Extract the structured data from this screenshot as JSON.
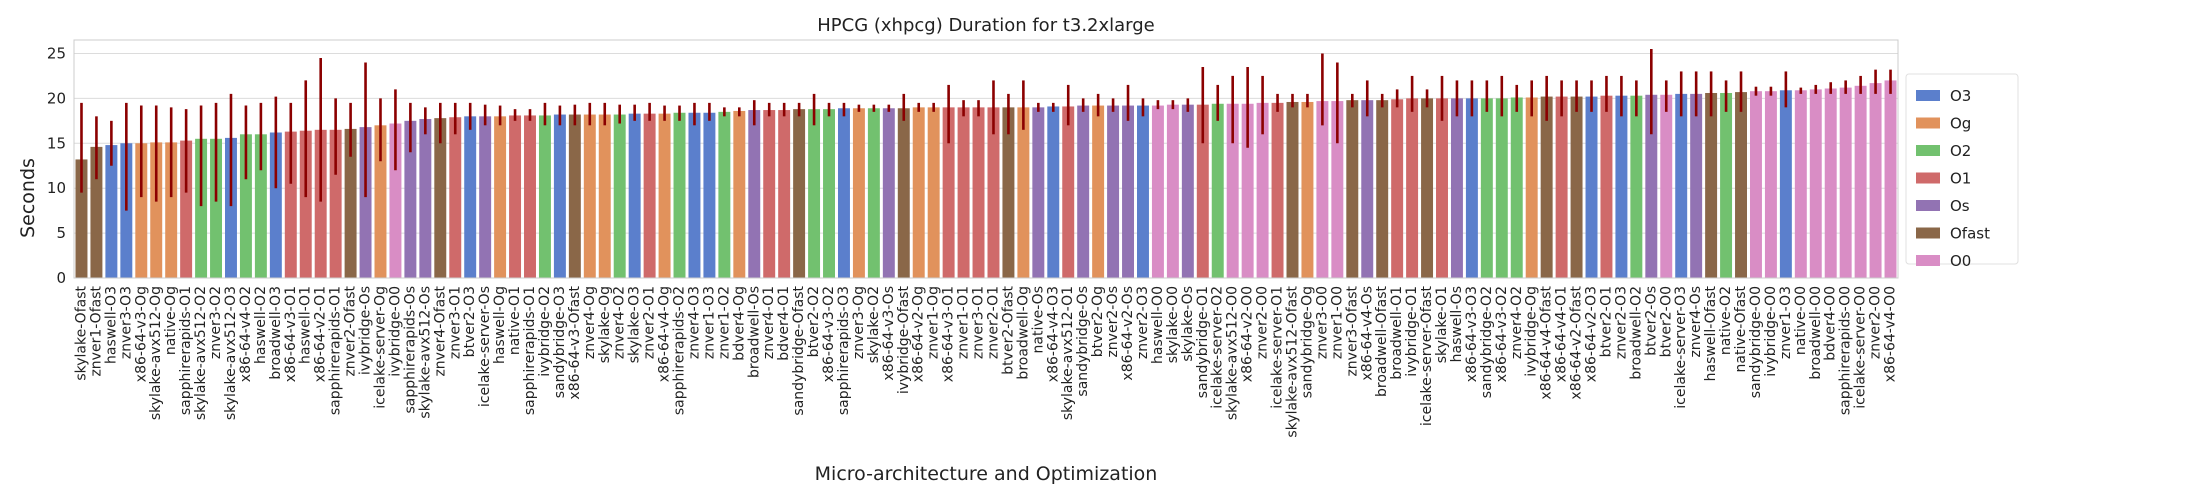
{
  "chart_data": {
    "type": "bar",
    "title": "HPCG (xhpcg) Duration for t3.2xlarge",
    "xlabel": "Micro-architecture and Optimization",
    "ylabel": "Seconds",
    "ylim": [
      0,
      26.5
    ],
    "yticks": [
      0,
      5,
      10,
      15,
      20,
      25
    ],
    "grid": true,
    "legend_position": "right",
    "legend": [
      {
        "name": "O3",
        "color": "#5b7fcc"
      },
      {
        "name": "Og",
        "color": "#e1925c"
      },
      {
        "name": "O2",
        "color": "#72c16f"
      },
      {
        "name": "O1",
        "color": "#cf6a6a"
      },
      {
        "name": "Os",
        "color": "#9273b3"
      },
      {
        "name": "Ofast",
        "color": "#8a6748"
      },
      {
        "name": "O0",
        "color": "#d98dc5"
      }
    ],
    "error_bar_color": "#8b0000",
    "bars": [
      {
        "label": "skylake-Ofast",
        "group": "Ofast",
        "value": 13.2,
        "err_low": 9.5,
        "err_high": 19.5
      },
      {
        "label": "znver1-Ofast",
        "group": "Ofast",
        "value": 14.6,
        "err_low": 11.0,
        "err_high": 18.0
      },
      {
        "label": "haswell-O3",
        "group": "O3",
        "value": 14.8,
        "err_low": 12.5,
        "err_high": 17.5
      },
      {
        "label": "znver3-O3",
        "group": "O3",
        "value": 15.0,
        "err_low": 7.5,
        "err_high": 19.5
      },
      {
        "label": "x86-64-v3-Og",
        "group": "Og",
        "value": 15.0,
        "err_low": 9.0,
        "err_high": 19.2
      },
      {
        "label": "skylake-avx512-Og",
        "group": "Og",
        "value": 15.1,
        "err_low": 8.5,
        "err_high": 19.2
      },
      {
        "label": "native-Og",
        "group": "Og",
        "value": 15.1,
        "err_low": 9.0,
        "err_high": 19.0
      },
      {
        "label": "sapphirerapids-O1",
        "group": "O1",
        "value": 15.3,
        "err_low": 9.5,
        "err_high": 18.8
      },
      {
        "label": "skylake-avx512-O2",
        "group": "O2",
        "value": 15.5,
        "err_low": 8.0,
        "err_high": 19.2
      },
      {
        "label": "znver3-O2",
        "group": "O2",
        "value": 15.5,
        "err_low": 8.5,
        "err_high": 19.5
      },
      {
        "label": "skylake-avx512-O3",
        "group": "O3",
        "value": 15.6,
        "err_low": 8.0,
        "err_high": 20.5
      },
      {
        "label": "x86-64-v4-O2",
        "group": "O2",
        "value": 16.0,
        "err_low": 11.0,
        "err_high": 19.2
      },
      {
        "label": "haswell-O2",
        "group": "O2",
        "value": 16.0,
        "err_low": 12.0,
        "err_high": 19.5
      },
      {
        "label": "broadwell-O3",
        "group": "O3",
        "value": 16.2,
        "err_low": 10.0,
        "err_high": 20.2
      },
      {
        "label": "x86-64-v3-O1",
        "group": "O1",
        "value": 16.3,
        "err_low": 10.5,
        "err_high": 19.5
      },
      {
        "label": "haswell-O1",
        "group": "O1",
        "value": 16.4,
        "err_low": 9.0,
        "err_high": 22.0
      },
      {
        "label": "x86-64-v2-O1",
        "group": "O1",
        "value": 16.5,
        "err_low": 8.5,
        "err_high": 24.5
      },
      {
        "label": "sapphirerapids-O1",
        "group": "O1",
        "value": 16.5,
        "err_low": 11.5,
        "err_high": 20.0
      },
      {
        "label": "znver2-Ofast",
        "group": "Ofast",
        "value": 16.6,
        "err_low": 13.5,
        "err_high": 19.5
      },
      {
        "label": "ivybridge-Os",
        "group": "Os",
        "value": 16.8,
        "err_low": 9.0,
        "err_high": 24.0
      },
      {
        "label": "icelake-server-Og",
        "group": "Og",
        "value": 17.0,
        "err_low": 13.0,
        "err_high": 20.0
      },
      {
        "label": "ivybridge-O0",
        "group": "O0",
        "value": 17.2,
        "err_low": 12.0,
        "err_high": 21.0
      },
      {
        "label": "sapphirerapids-Os",
        "group": "Os",
        "value": 17.5,
        "err_low": 14.0,
        "err_high": 19.5
      },
      {
        "label": "skylake-avx512-Os",
        "group": "Os",
        "value": 17.7,
        "err_low": 16.0,
        "err_high": 19.0
      },
      {
        "label": "znver4-Ofast",
        "group": "Ofast",
        "value": 17.8,
        "err_low": 15.0,
        "err_high": 19.5
      },
      {
        "label": "znver3-O1",
        "group": "O1",
        "value": 17.9,
        "err_low": 16.0,
        "err_high": 19.5
      },
      {
        "label": "btver2-O3",
        "group": "O3",
        "value": 18.0,
        "err_low": 16.5,
        "err_high": 19.5
      },
      {
        "label": "icelake-server-Os",
        "group": "Os",
        "value": 18.0,
        "err_low": 17.0,
        "err_high": 19.3
      },
      {
        "label": "haswell-Og",
        "group": "Og",
        "value": 18.0,
        "err_low": 17.0,
        "err_high": 19.2
      },
      {
        "label": "native-O1",
        "group": "O1",
        "value": 18.1,
        "err_low": 17.5,
        "err_high": 18.8
      },
      {
        "label": "sapphirerapids-O1",
        "group": "O1",
        "value": 18.1,
        "err_low": 17.5,
        "err_high": 18.8
      },
      {
        "label": "ivybridge-O2",
        "group": "O2",
        "value": 18.1,
        "err_low": 17.0,
        "err_high": 19.5
      },
      {
        "label": "sandybridge-O3",
        "group": "O3",
        "value": 18.2,
        "err_low": 17.0,
        "err_high": 19.2
      },
      {
        "label": "x86-64-v3-Ofast",
        "group": "Ofast",
        "value": 18.2,
        "err_low": 17.0,
        "err_high": 19.3
      },
      {
        "label": "znver4-Og",
        "group": "Og",
        "value": 18.2,
        "err_low": 17.0,
        "err_high": 19.5
      },
      {
        "label": "skylake-Og",
        "group": "Og",
        "value": 18.2,
        "err_low": 17.0,
        "err_high": 19.5
      },
      {
        "label": "znver4-O2",
        "group": "O2",
        "value": 18.2,
        "err_low": 17.2,
        "err_high": 19.3
      },
      {
        "label": "skylake-O3",
        "group": "O3",
        "value": 18.3,
        "err_low": 17.5,
        "err_high": 19.3
      },
      {
        "label": "znver2-O1",
        "group": "O1",
        "value": 18.3,
        "err_low": 17.5,
        "err_high": 19.5
      },
      {
        "label": "x86-64-v4-Og",
        "group": "Og",
        "value": 18.3,
        "err_low": 17.5,
        "err_high": 19.2
      },
      {
        "label": "sapphirerapids-O2",
        "group": "O2",
        "value": 18.4,
        "err_low": 17.5,
        "err_high": 19.2
      },
      {
        "label": "znver4-O3",
        "group": "O3",
        "value": 18.4,
        "err_low": 17.0,
        "err_high": 19.5
      },
      {
        "label": "znver1-O3",
        "group": "O3",
        "value": 18.4,
        "err_low": 17.5,
        "err_high": 19.5
      },
      {
        "label": "znver1-O2",
        "group": "O2",
        "value": 18.5,
        "err_low": 18.0,
        "err_high": 19.0
      },
      {
        "label": "bdver4-Og",
        "group": "Og",
        "value": 18.6,
        "err_low": 18.0,
        "err_high": 19.0
      },
      {
        "label": "broadwell-Os",
        "group": "Os",
        "value": 18.7,
        "err_low": 17.0,
        "err_high": 19.8
      },
      {
        "label": "znver4-O1",
        "group": "O1",
        "value": 18.7,
        "err_low": 18.0,
        "err_high": 19.5
      },
      {
        "label": "bdver4-O1",
        "group": "O1",
        "value": 18.7,
        "err_low": 18.0,
        "err_high": 19.5
      },
      {
        "label": "sandybridge-Ofast",
        "group": "Ofast",
        "value": 18.8,
        "err_low": 18.0,
        "err_high": 19.5
      },
      {
        "label": "btver2-O2",
        "group": "O2",
        "value": 18.8,
        "err_low": 17.0,
        "err_high": 20.5
      },
      {
        "label": "x86-64-v3-O2",
        "group": "O2",
        "value": 18.8,
        "err_low": 18.0,
        "err_high": 19.5
      },
      {
        "label": "sapphirerapids-O3",
        "group": "O3",
        "value": 18.9,
        "err_low": 18.0,
        "err_high": 19.5
      },
      {
        "label": "znver3-Og",
        "group": "Og",
        "value": 18.9,
        "err_low": 18.5,
        "err_high": 19.3
      },
      {
        "label": "skylake-O2",
        "group": "O2",
        "value": 18.9,
        "err_low": 18.5,
        "err_high": 19.3
      },
      {
        "label": "x86-64-v3-Os",
        "group": "Os",
        "value": 18.9,
        "err_low": 18.5,
        "err_high": 19.3
      },
      {
        "label": "ivybridge-Ofast",
        "group": "Ofast",
        "value": 18.9,
        "err_low": 17.5,
        "err_high": 20.5
      },
      {
        "label": "x86-64-v2-Og",
        "group": "Og",
        "value": 19.0,
        "err_low": 18.5,
        "err_high": 19.5
      },
      {
        "label": "znver1-Og",
        "group": "Og",
        "value": 19.0,
        "err_low": 18.5,
        "err_high": 19.5
      },
      {
        "label": "x86-64-v3-O1",
        "group": "O1",
        "value": 19.0,
        "err_low": 15.0,
        "err_high": 21.5
      },
      {
        "label": "znver1-O1",
        "group": "O1",
        "value": 19.0,
        "err_low": 18.0,
        "err_high": 19.8
      },
      {
        "label": "znver3-O1",
        "group": "O1",
        "value": 19.0,
        "err_low": 18.0,
        "err_high": 19.8
      },
      {
        "label": "znver2-O1",
        "group": "O1",
        "value": 19.0,
        "err_low": 16.0,
        "err_high": 22.0
      },
      {
        "label": "btver2-Ofast",
        "group": "Ofast",
        "value": 19.0,
        "err_low": 16.0,
        "err_high": 20.5
      },
      {
        "label": "broadwell-Og",
        "group": "Og",
        "value": 19.0,
        "err_low": 16.5,
        "err_high": 22.0
      },
      {
        "label": "native-Os",
        "group": "Os",
        "value": 19.0,
        "err_low": 18.5,
        "err_high": 19.5
      },
      {
        "label": "x86-64-v4-O3",
        "group": "O3",
        "value": 19.1,
        "err_low": 18.5,
        "err_high": 19.5
      },
      {
        "label": "skylake-avx512-O1",
        "group": "O1",
        "value": 19.1,
        "err_low": 17.0,
        "err_high": 21.5
      },
      {
        "label": "sandybridge-Os",
        "group": "Os",
        "value": 19.2,
        "err_low": 18.5,
        "err_high": 20.0
      },
      {
        "label": "btver2-Og",
        "group": "Og",
        "value": 19.2,
        "err_low": 18.0,
        "err_high": 20.5
      },
      {
        "label": "znver2-Os",
        "group": "Os",
        "value": 19.2,
        "err_low": 18.5,
        "err_high": 20.0
      },
      {
        "label": "x86-64-v2-Os",
        "group": "Os",
        "value": 19.2,
        "err_low": 17.5,
        "err_high": 21.5
      },
      {
        "label": "znver2-O3",
        "group": "O3",
        "value": 19.2,
        "err_low": 18.0,
        "err_high": 20.0
      },
      {
        "label": "haswell-O0",
        "group": "O0",
        "value": 19.2,
        "err_low": 18.8,
        "err_high": 19.8
      },
      {
        "label": "skylake-O0",
        "group": "O0",
        "value": 19.3,
        "err_low": 18.8,
        "err_high": 19.8
      },
      {
        "label": "skylake-Os",
        "group": "Os",
        "value": 19.3,
        "err_low": 18.5,
        "err_high": 20.0
      },
      {
        "label": "sandybridge-O1",
        "group": "O1",
        "value": 19.3,
        "err_low": 15.0,
        "err_high": 23.5
      },
      {
        "label": "icelake-server-O2",
        "group": "O2",
        "value": 19.4,
        "err_low": 17.5,
        "err_high": 21.5
      },
      {
        "label": "skylake-avx512-O0",
        "group": "O0",
        "value": 19.4,
        "err_low": 15.0,
        "err_high": 22.5
      },
      {
        "label": "x86-64-v2-O0",
        "group": "O0",
        "value": 19.4,
        "err_low": 14.5,
        "err_high": 23.5
      },
      {
        "label": "znver2-O0",
        "group": "O0",
        "value": 19.5,
        "err_low": 16.0,
        "err_high": 22.5
      },
      {
        "label": "icelake-server-O1",
        "group": "O1",
        "value": 19.5,
        "err_low": 18.5,
        "err_high": 20.5
      },
      {
        "label": "skylake-avx512-Ofast",
        "group": "Ofast",
        "value": 19.6,
        "err_low": 19.0,
        "err_high": 20.5
      },
      {
        "label": "sandybridge-Og",
        "group": "Og",
        "value": 19.6,
        "err_low": 19.0,
        "err_high": 20.5
      },
      {
        "label": "znver3-O0",
        "group": "O0",
        "value": 19.7,
        "err_low": 17.0,
        "err_high": 25.0
      },
      {
        "label": "znver1-O0",
        "group": "O0",
        "value": 19.7,
        "err_low": 15.0,
        "err_high": 24.0
      },
      {
        "label": "znver3-Ofast",
        "group": "Ofast",
        "value": 19.8,
        "err_low": 19.0,
        "err_high": 20.5
      },
      {
        "label": "x86-64-v4-Os",
        "group": "Os",
        "value": 19.8,
        "err_low": 18.0,
        "err_high": 22.0
      },
      {
        "label": "broadwell-Ofast",
        "group": "Ofast",
        "value": 19.8,
        "err_low": 19.0,
        "err_high": 20.5
      },
      {
        "label": "broadwell-O1",
        "group": "O1",
        "value": 19.9,
        "err_low": 19.0,
        "err_high": 21.0
      },
      {
        "label": "ivybridge-O1",
        "group": "O1",
        "value": 20.0,
        "err_low": 18.5,
        "err_high": 22.5
      },
      {
        "label": "icelake-server-Ofast",
        "group": "Ofast",
        "value": 20.0,
        "err_low": 19.0,
        "err_high": 21.0
      },
      {
        "label": "skylake-O1",
        "group": "O1",
        "value": 20.0,
        "err_low": 17.5,
        "err_high": 22.5
      },
      {
        "label": "haswell-Os",
        "group": "Os",
        "value": 20.0,
        "err_low": 18.0,
        "err_high": 22.0
      },
      {
        "label": "x86-64-v3-O3",
        "group": "O3",
        "value": 20.0,
        "err_low": 18.0,
        "err_high": 22.0
      },
      {
        "label": "sandybridge-O2",
        "group": "O2",
        "value": 20.0,
        "err_low": 18.5,
        "err_high": 22.0
      },
      {
        "label": "x86-64-v3-O2",
        "group": "O2",
        "value": 20.0,
        "err_low": 18.0,
        "err_high": 22.5
      },
      {
        "label": "znver4-O2",
        "group": "O2",
        "value": 20.1,
        "err_low": 18.5,
        "err_high": 21.5
      },
      {
        "label": "ivybridge-Og",
        "group": "Og",
        "value": 20.1,
        "err_low": 18.0,
        "err_high": 22.0
      },
      {
        "label": "x86-64-v4-Ofast",
        "group": "Ofast",
        "value": 20.2,
        "err_low": 17.5,
        "err_high": 22.5
      },
      {
        "label": "x86-64-v4-O1",
        "group": "O1",
        "value": 20.2,
        "err_low": 18.0,
        "err_high": 22.0
      },
      {
        "label": "x86-64-v2-Ofast",
        "group": "Ofast",
        "value": 20.2,
        "err_low": 18.5,
        "err_high": 22.0
      },
      {
        "label": "x86-64-v2-O3",
        "group": "O3",
        "value": 20.2,
        "err_low": 18.5,
        "err_high": 22.0
      },
      {
        "label": "btver2-O1",
        "group": "O1",
        "value": 20.3,
        "err_low": 18.5,
        "err_high": 22.5
      },
      {
        "label": "znver2-O3",
        "group": "O3",
        "value": 20.3,
        "err_low": 18.0,
        "err_high": 22.5
      },
      {
        "label": "broadwell-O2",
        "group": "O2",
        "value": 20.3,
        "err_low": 18.0,
        "err_high": 22.0
      },
      {
        "label": "btver2-Os",
        "group": "Os",
        "value": 20.4,
        "err_low": 16.0,
        "err_high": 25.5
      },
      {
        "label": "btver2-O0",
        "group": "O0",
        "value": 20.4,
        "err_low": 18.5,
        "err_high": 22.0
      },
      {
        "label": "icelake-server-O3",
        "group": "O3",
        "value": 20.5,
        "err_low": 18.0,
        "err_high": 23.0
      },
      {
        "label": "znver4-Os",
        "group": "Os",
        "value": 20.5,
        "err_low": 18.0,
        "err_high": 23.0
      },
      {
        "label": "haswell-Ofast",
        "group": "Ofast",
        "value": 20.6,
        "err_low": 18.0,
        "err_high": 23.0
      },
      {
        "label": "native-O2",
        "group": "O2",
        "value": 20.6,
        "err_low": 18.5,
        "err_high": 22.0
      },
      {
        "label": "native-Ofast",
        "group": "Ofast",
        "value": 20.7,
        "err_low": 18.5,
        "err_high": 23.0
      },
      {
        "label": "sandybridge-O0",
        "group": "O0",
        "value": 20.8,
        "err_low": 20.3,
        "err_high": 21.3
      },
      {
        "label": "ivybridge-O0",
        "group": "O0",
        "value": 20.8,
        "err_low": 20.3,
        "err_high": 21.3
      },
      {
        "label": "znver1-O3",
        "group": "O3",
        "value": 20.9,
        "err_low": 19.0,
        "err_high": 23.0
      },
      {
        "label": "native-O0",
        "group": "O0",
        "value": 20.9,
        "err_low": 20.5,
        "err_high": 21.2
      },
      {
        "label": "broadwell-O0",
        "group": "O0",
        "value": 21.0,
        "err_low": 20.5,
        "err_high": 21.5
      },
      {
        "label": "bdver4-O0",
        "group": "O0",
        "value": 21.1,
        "err_low": 20.5,
        "err_high": 21.8
      },
      {
        "label": "sapphirerapids-O0",
        "group": "O0",
        "value": 21.2,
        "err_low": 20.5,
        "err_high": 22.0
      },
      {
        "label": "icelake-server-O0",
        "group": "O0",
        "value": 21.4,
        "err_low": 20.5,
        "err_high": 22.5
      },
      {
        "label": "znver2-O0",
        "group": "O0",
        "value": 21.7,
        "err_low": 20.5,
        "err_high": 23.2
      },
      {
        "label": "x86-64-v4-O0",
        "group": "O0",
        "value": 22.0,
        "err_low": 20.5,
        "err_high": 23.2
      }
    ]
  }
}
